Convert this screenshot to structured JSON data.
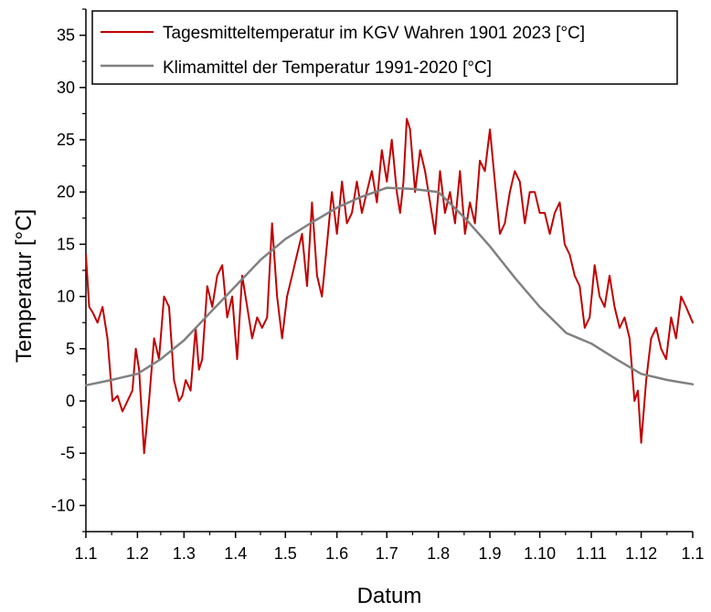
{
  "chart_data": {
    "type": "line",
    "title": "",
    "xlabel": "Datum",
    "ylabel": "Temperatur [°C]",
    "ylim": [
      -12.5,
      37.5
    ],
    "xlim": [
      0,
      365
    ],
    "x_tick_labels": [
      "1.1",
      "1.2",
      "1.3",
      "1.4",
      "1.5",
      "1.6",
      "1.7",
      "1.8",
      "1.9",
      "1.10",
      "1.11",
      "1.12",
      "1.1"
    ],
    "x_tick_positions": [
      0,
      31,
      59,
      90,
      120,
      151,
      181,
      212,
      243,
      273,
      304,
      334,
      365
    ],
    "y_ticks": [
      -10,
      -5,
      0,
      5,
      10,
      15,
      20,
      25,
      30,
      35
    ],
    "legend_placement": "top-left",
    "grid": false,
    "series": [
      {
        "name": "Tagesmitteltemperatur im KGV Wahren 1901 2023 [°C]",
        "color": "#c00000",
        "x": [
          0,
          2,
          4,
          7,
          10,
          13,
          16,
          19,
          22,
          25,
          28,
          30,
          32,
          35,
          38,
          41,
          44,
          47,
          50,
          53,
          56,
          58,
          60,
          63,
          66,
          68,
          70,
          73,
          76,
          79,
          82,
          85,
          88,
          91,
          94,
          97,
          100,
          103,
          106,
          109,
          112,
          115,
          118,
          121,
          124,
          127,
          130,
          133,
          136,
          139,
          142,
          145,
          148,
          151,
          154,
          157,
          160,
          163,
          166,
          169,
          172,
          175,
          178,
          181,
          184,
          187,
          189,
          191,
          193,
          195,
          198,
          201,
          204,
          207,
          210,
          213,
          216,
          219,
          222,
          225,
          228,
          231,
          234,
          237,
          240,
          243,
          246,
          249,
          252,
          255,
          258,
          261,
          264,
          267,
          270,
          273,
          276,
          279,
          282,
          285,
          288,
          291,
          294,
          297,
          300,
          303,
          306,
          309,
          312,
          315,
          318,
          321,
          324,
          327,
          330,
          332,
          334,
          337,
          340,
          343,
          346,
          349,
          352,
          355,
          358,
          361,
          365
        ],
        "values": [
          14,
          9,
          8.5,
          7.5,
          9,
          6,
          0,
          0.5,
          -1,
          0,
          1,
          5,
          3,
          -5,
          0,
          6,
          4,
          10,
          9,
          2,
          0,
          0.5,
          2,
          1,
          7,
          3,
          4,
          11,
          9,
          12,
          13,
          8,
          10,
          4,
          12,
          9,
          6,
          8,
          7,
          8,
          17,
          10,
          6,
          10,
          12,
          14,
          16,
          11,
          19,
          12,
          10,
          15,
          20,
          16,
          21,
          17,
          18,
          21,
          18,
          20,
          22,
          19,
          24,
          21,
          25,
          20,
          18,
          21,
          27,
          26,
          20,
          24,
          22,
          19,
          16,
          22,
          18,
          20,
          17,
          22,
          16,
          19,
          17,
          23,
          22,
          26,
          21,
          16,
          17,
          20,
          22,
          21,
          17,
          20,
          20,
          18,
          18,
          16,
          18,
          19,
          15,
          14,
          12,
          11,
          7,
          8,
          13,
          10,
          9,
          12,
          9,
          7,
          8,
          6,
          0,
          1,
          -4,
          2,
          6,
          7,
          5,
          4,
          8,
          6,
          10,
          9,
          7.5
        ],
        "stroke_width": 2
      },
      {
        "name": "Klimamittel der Temperatur 1991-2020 [°C]",
        "color": "#808080",
        "x": [
          0,
          15,
          31,
          45,
          59,
          75,
          90,
          105,
          120,
          135,
          151,
          165,
          181,
          196,
          212,
          228,
          243,
          258,
          273,
          289,
          304,
          319,
          334,
          350,
          365
        ],
        "values": [
          1.5,
          2,
          2.6,
          4,
          5.8,
          8.5,
          11,
          13.5,
          15.5,
          17,
          18.5,
          19.5,
          20.4,
          20.3,
          20,
          17.5,
          14.8,
          11.8,
          9,
          6.5,
          5.5,
          4,
          2.6,
          2,
          1.6
        ],
        "stroke_width": 2.5
      }
    ]
  }
}
